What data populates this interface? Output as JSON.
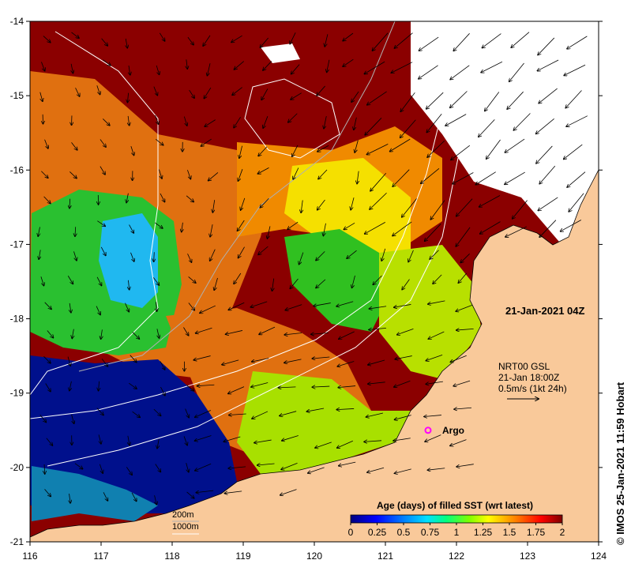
{
  "map": {
    "title_stamp": "21-Jan-2021 04Z",
    "credit": "© IMOS 25-Jan-2021 11:59 Hobart",
    "current_source": {
      "line1": "NRT00 GSL",
      "line2": "21-Jan 18:00Z",
      "line3": "0.5m/s (1kt 24h)"
    },
    "argo_label": "Argo",
    "argo_position": {
      "lon": 121.6,
      "lat": -19.5
    },
    "depth_contours": {
      "line1": "200m",
      "line2": "1000m"
    },
    "lon_ticks": [
      "116",
      "117",
      "118",
      "119",
      "120",
      "121",
      "122",
      "123",
      "124"
    ],
    "lat_ticks": [
      "-14",
      "-15",
      "-16",
      "-17",
      "-18",
      "-19",
      "-20",
      "-21"
    ],
    "lon_range": [
      116,
      124
    ],
    "lat_range": [
      -21,
      -14
    ],
    "colorbar": {
      "title": "Age (days) of filled SST (wrt latest)",
      "tick_labels": [
        "0",
        "0.25",
        "0.5",
        "0.75",
        "1",
        "1.25",
        "1.5",
        "1.75",
        "2"
      ],
      "range": [
        0,
        2
      ]
    },
    "colors": {
      "land": "#f9c99a",
      "no_data": "#ffffff",
      "scale": [
        "#00007f",
        "#0000ff",
        "#0080ff",
        "#00e0ff",
        "#00ff80",
        "#7fff00",
        "#ffff00",
        "#ff8000",
        "#ff0000",
        "#7f0000"
      ],
      "argo": "#ff00ff"
    }
  }
}
